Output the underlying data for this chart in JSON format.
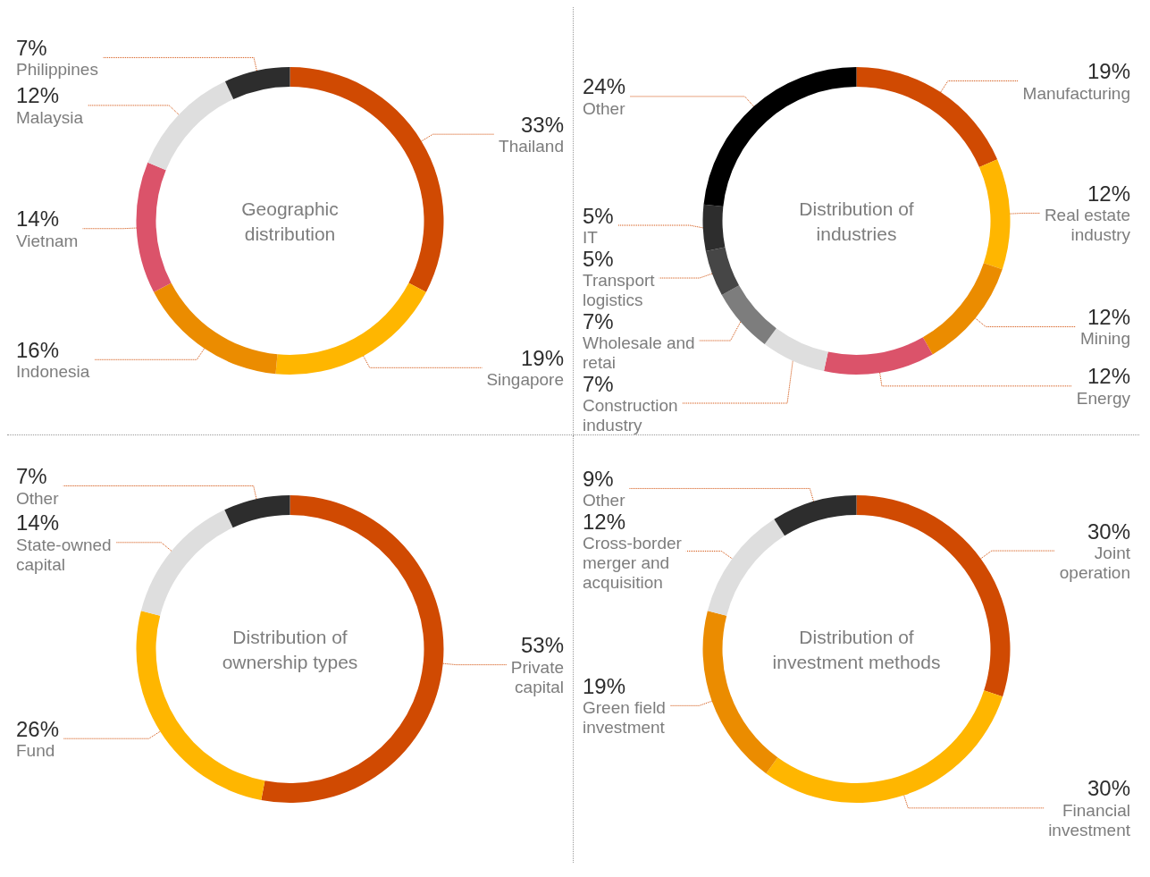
{
  "chart_data": [
    {
      "type": "donut",
      "title": "Geographic distribution",
      "categories": [
        "Thailand",
        "Singapore",
        "Indonesia",
        "Vietnam",
        "Malaysia",
        "Philippines"
      ],
      "values": [
        33,
        19,
        16,
        14,
        12,
        7
      ],
      "colors": [
        "#d04a02",
        "#ffb600",
        "#eb8c00",
        "#db536a",
        "#dedede",
        "#2d2d2d"
      ],
      "value_labels": [
        "33%",
        "19%",
        "16%",
        "14%",
        "12%",
        "7%"
      ],
      "legend": false
    },
    {
      "type": "donut",
      "title": "Distribution of industries",
      "categories": [
        "Manufacturing",
        "Real estate industry",
        "Mining",
        "Energy",
        "Construction industry",
        "Wholesale and retai",
        "Transport logistics",
        "IT",
        "Other"
      ],
      "values": [
        19,
        12,
        12,
        12,
        7,
        7,
        5,
        5,
        24
      ],
      "colors": [
        "#d04a02",
        "#ffb600",
        "#eb8c00",
        "#db536a",
        "#dedede",
        "#7d7d7d",
        "#464646",
        "#2d2d2d",
        "#000000"
      ],
      "value_labels": [
        "19%",
        "12%",
        "12%",
        "12%",
        "7%",
        "7%",
        "5%",
        "5%",
        "24%"
      ],
      "legend": false
    },
    {
      "type": "donut",
      "title": "Distribution of ownership types",
      "categories": [
        "Private capital",
        "Fund",
        "State-owned capital",
        "Other"
      ],
      "values": [
        53,
        26,
        14,
        7
      ],
      "colors": [
        "#d04a02",
        "#ffb600",
        "#dedede",
        "#2d2d2d"
      ],
      "value_labels": [
        "53%",
        "26%",
        "14%",
        "7%"
      ],
      "legend": false
    },
    {
      "type": "donut",
      "title": "Distribution of investment methods",
      "categories": [
        "Joint operation",
        "Financial investment",
        "Green field investment",
        "Cross-border merger and acquisition",
        "Other"
      ],
      "values": [
        30,
        30,
        19,
        12,
        9
      ],
      "colors": [
        "#d04a02",
        "#ffb600",
        "#eb8c00",
        "#dedede",
        "#2d2d2d"
      ],
      "value_labels": [
        "30%",
        "30%",
        "19%",
        "12%",
        "9%"
      ],
      "legend": false
    }
  ]
}
